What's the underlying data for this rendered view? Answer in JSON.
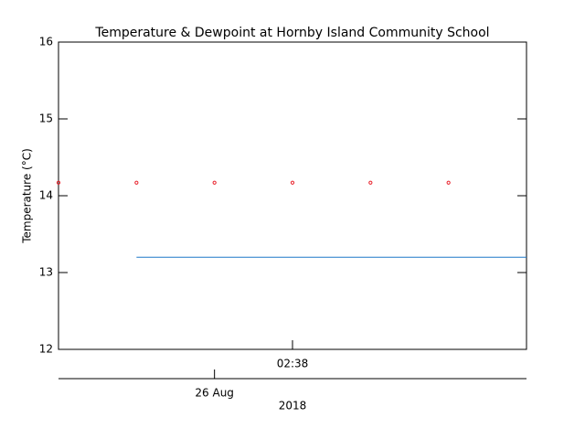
{
  "chart_data": {
    "type": "line",
    "title": "Temperature & Dewpoint at Hornby Island Community School",
    "y_label": "Temperature (°C)",
    "x": [
      0,
      1,
      2,
      3,
      4,
      5,
      6
    ],
    "xlim": [
      0,
      6
    ],
    "xticks": [
      {
        "value": 3,
        "label": "02:38"
      }
    ],
    "x2ticks": [
      {
        "value": 2,
        "label": "26 Aug"
      }
    ],
    "x2_label": "2018",
    "ylim": [
      12,
      16
    ],
    "yticks": [
      12,
      13,
      14,
      15,
      16
    ],
    "series": [
      {
        "color": "#e8202a",
        "marker": "circle",
        "values": [
          14.17,
          14.17,
          14.17,
          14.17,
          14.17,
          14.17,
          null
        ]
      },
      {
        "color": "#1f78c8",
        "marker": "none",
        "values": [
          null,
          13.2,
          13.2,
          13.2,
          13.2,
          13.2,
          13.2
        ]
      }
    ]
  }
}
